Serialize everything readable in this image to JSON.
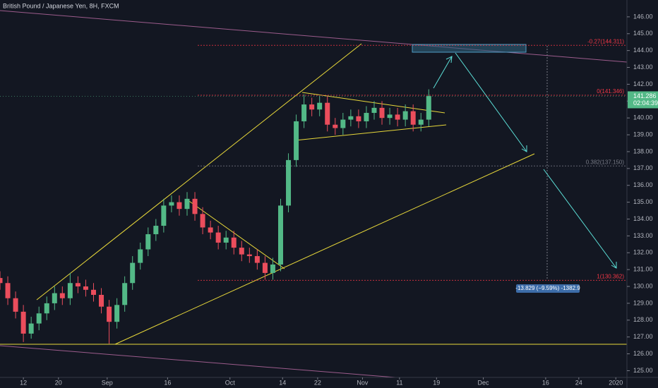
{
  "chart_data": {
    "type": "candlestick",
    "title": "British Pound / Japanese Yen, 8H, FXCM",
    "up_color": "#53b987",
    "down_color": "#eb4d5c",
    "x": [
      0,
      4,
      8,
      12,
      16,
      20,
      24,
      28,
      32,
      36,
      40,
      44,
      48,
      52,
      56,
      60,
      64,
      68,
      72,
      76,
      80,
      84,
      88,
      92,
      96,
      100,
      104,
      108,
      112,
      116,
      120,
      124,
      128,
      132,
      136,
      140,
      144,
      148,
      152,
      156,
      160,
      164,
      168,
      172,
      176,
      180,
      184,
      188,
      192,
      196,
      200,
      204,
      208,
      212,
      216,
      220
    ],
    "open": [
      130.5,
      130.2,
      129.3,
      128.5,
      127.2,
      127.8,
      128.4,
      129.0,
      129.6,
      129.3,
      130.2,
      130.0,
      129.8,
      129.5,
      128.8,
      127.9,
      128.9,
      130.2,
      131.4,
      132.2,
      133.1,
      133.6,
      134.8,
      135.0,
      134.6,
      135.2,
      134.3,
      133.5,
      133.2,
      132.6,
      132.9,
      132.3,
      131.9,
      131.8,
      131.4,
      130.8,
      131.3,
      134.8,
      137.5,
      139.8,
      140.8,
      140.5,
      140.9,
      139.6,
      139.4,
      139.9,
      140.1,
      139.8,
      140.3,
      140.6,
      140.0,
      140.2,
      139.9,
      140.4,
      139.6,
      139.9
    ],
    "high": [
      130.9,
      130.6,
      129.7,
      128.9,
      128.2,
      128.8,
      129.4,
      130.0,
      130.0,
      130.8,
      130.6,
      130.4,
      130.2,
      129.9,
      129.2,
      129.3,
      130.6,
      131.8,
      132.6,
      133.5,
      134.0,
      135.2,
      135.4,
      135.4,
      135.6,
      135.6,
      134.7,
      133.9,
      133.6,
      133.3,
      133.3,
      132.7,
      132.3,
      132.2,
      131.8,
      131.7,
      135.2,
      137.9,
      140.2,
      141.4,
      141.2,
      141.3,
      141.3,
      140.0,
      140.3,
      140.5,
      140.5,
      140.7,
      141.0,
      141.0,
      140.6,
      140.6,
      140.8,
      140.8,
      140.3,
      141.7
    ],
    "low": [
      129.8,
      128.9,
      128.1,
      126.7,
      126.9,
      127.4,
      128.0,
      128.6,
      128.9,
      128.9,
      129.6,
      129.4,
      129.1,
      128.4,
      126.6,
      127.5,
      128.5,
      129.8,
      131.0,
      131.8,
      132.7,
      133.2,
      134.4,
      134.2,
      134.2,
      133.9,
      133.1,
      132.8,
      132.2,
      132.2,
      131.9,
      131.5,
      131.4,
      131.0,
      130.4,
      130.4,
      130.9,
      134.4,
      137.1,
      139.4,
      140.1,
      140.1,
      139.2,
      139.0,
      139.0,
      139.5,
      139.4,
      139.4,
      139.9,
      139.6,
      139.6,
      139.5,
      139.5,
      139.2,
      139.2,
      139.5
    ],
    "close": [
      130.2,
      129.3,
      128.5,
      127.2,
      127.8,
      128.4,
      129.0,
      129.6,
      129.3,
      130.2,
      130.0,
      129.8,
      129.5,
      128.8,
      127.9,
      128.9,
      130.2,
      131.4,
      132.2,
      133.1,
      133.6,
      134.8,
      135.0,
      134.6,
      135.2,
      134.3,
      133.5,
      133.2,
      132.6,
      132.9,
      132.3,
      131.9,
      131.8,
      131.4,
      130.8,
      131.3,
      134.8,
      137.5,
      139.8,
      140.8,
      140.5,
      140.9,
      139.6,
      139.4,
      139.9,
      140.1,
      139.8,
      140.3,
      140.6,
      140.0,
      140.2,
      139.9,
      140.4,
      139.6,
      139.9,
      141.3
    ],
    "xlim": [
      0,
      321.7
    ],
    "xticks": [
      {
        "value": 12,
        "label": "12"
      },
      {
        "value": 30,
        "label": "20"
      },
      {
        "value": 55,
        "label": "Sep"
      },
      {
        "value": 86,
        "label": "16"
      },
      {
        "value": 118,
        "label": "Oct"
      },
      {
        "value": 145,
        "label": "14"
      },
      {
        "value": 163,
        "label": "22"
      },
      {
        "value": 186,
        "label": "Nov"
      },
      {
        "value": 205,
        "label": "11"
      },
      {
        "value": 224,
        "label": "19"
      },
      {
        "value": 248,
        "label": "Dec"
      },
      {
        "value": 280,
        "label": "16"
      },
      {
        "value": 297,
        "label": "24"
      },
      {
        "value": 316,
        "label": "2020"
      }
    ],
    "ylim": [
      124.6,
      147.0
    ],
    "yticks": [
      {
        "value": 125,
        "label": "125.00"
      },
      {
        "value": 126,
        "label": "126.00"
      },
      {
        "value": 127,
        "label": "127.00"
      },
      {
        "value": 128,
        "label": "128.00"
      },
      {
        "value": 129,
        "label": "129.00"
      },
      {
        "value": 130,
        "label": "130.00"
      },
      {
        "value": 131,
        "label": "131.00"
      },
      {
        "value": 132,
        "label": "132.00"
      },
      {
        "value": 133,
        "label": "133.00"
      },
      {
        "value": 134,
        "label": "134.00"
      },
      {
        "value": 135,
        "label": "135.00"
      },
      {
        "value": 136,
        "label": "136.00"
      },
      {
        "value": 137,
        "label": "137.00"
      },
      {
        "value": 138,
        "label": "138.00"
      },
      {
        "value": 139,
        "label": "139.00"
      },
      {
        "value": 140,
        "label": "140.00"
      },
      {
        "value": 141,
        "label": "141.00"
      },
      {
        "value": 142,
        "label": "142.00"
      },
      {
        "value": 143,
        "label": "143.00"
      },
      {
        "value": 144,
        "label": "144.00"
      },
      {
        "value": 145,
        "label": "145.00"
      },
      {
        "value": 146,
        "label": "146.00"
      }
    ],
    "fib_levels": [
      {
        "label": "-0.27(144.311)",
        "value": 144.311,
        "color": "#f23645"
      },
      {
        "label": "0(141.346)",
        "value": 141.346,
        "color": "#f23645"
      },
      {
        "label": "0.382(137.150)",
        "value": 137.15,
        "color": "#787b86"
      },
      {
        "label": "1(130.362)",
        "value": 130.362,
        "color": "#f23645"
      }
    ],
    "last_price": {
      "label": "141.286",
      "value": 141.286
    },
    "countdown": "02:04:39",
    "measure_label": "-13.829 (−9.59%) -1382.9"
  }
}
